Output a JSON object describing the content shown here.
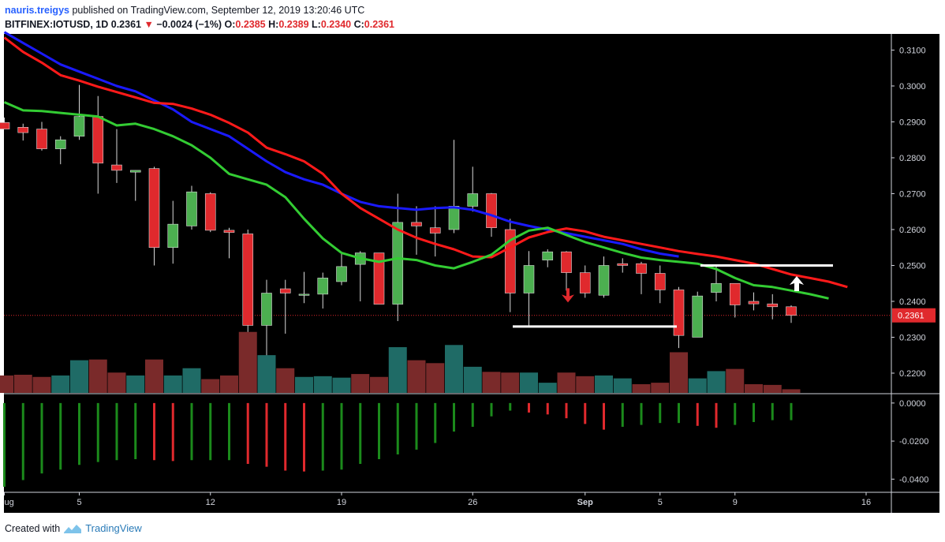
{
  "header": {
    "author": "nauris.treigys",
    "published_text": "published on TradingView.com, September 12, 2019 13:20:46 UTC",
    "symbol": "BITFINEX:IOTUSD, 1D",
    "last": "0.2361",
    "change_arrow": "▼",
    "change": "−0.0024 (−1%)",
    "o_label": "O:",
    "o": "0.2385",
    "h_label": "H:",
    "h": "0.2389",
    "l_label": "L:",
    "l": "0.2340",
    "c_label": "C:",
    "c": "0.2361"
  },
  "footer": {
    "created_with": "Created with",
    "brand": "TradingView",
    "logo_icon": "tradingview-logo-icon"
  },
  "colors": {
    "background": "#000000",
    "up": "#4caf50",
    "down": "#e0292d",
    "ema_blue": "#1a1aff",
    "ema_red": "#ff1a1a",
    "ema_green": "#33cc33",
    "vol_up": "#1f6b66",
    "vol_down": "#7a2a2a",
    "macd_up": "#1b8a1b",
    "macd_down": "#e0292d",
    "grid": "#2a2e39",
    "axis_text": "#d1d4dc"
  },
  "chart_data": [
    {
      "type": "candlestick",
      "title": "BITFINEX:IOTUSD, 1D",
      "ylim": [
        0.2145,
        0.3145
      ],
      "y_ticks": [
        "0.3100",
        "0.3000",
        "0.2900",
        "0.2800",
        "0.2700",
        "0.2600",
        "0.2500",
        "0.2400",
        "0.2300",
        "0.2200"
      ],
      "x_labels": [
        "ug",
        "5",
        "12",
        "19",
        "26",
        "Sep",
        "5",
        "9",
        "16"
      ],
      "last_price_label": "0.2361",
      "last_price": 0.2361,
      "candles": [
        {
          "o": 0.2898,
          "h": 0.2912,
          "l": 0.288,
          "c": 0.288
        },
        {
          "o": 0.2885,
          "h": 0.2895,
          "l": 0.2848,
          "c": 0.287
        },
        {
          "o": 0.288,
          "h": 0.29,
          "l": 0.282,
          "c": 0.2825
        },
        {
          "o": 0.2825,
          "h": 0.286,
          "l": 0.2782,
          "c": 0.285
        },
        {
          "o": 0.286,
          "h": 0.3003,
          "l": 0.285,
          "c": 0.2915
        },
        {
          "o": 0.2915,
          "h": 0.2972,
          "l": 0.27,
          "c": 0.2785
        },
        {
          "o": 0.278,
          "h": 0.288,
          "l": 0.273,
          "c": 0.2765
        },
        {
          "o": 0.276,
          "h": 0.2765,
          "l": 0.268,
          "c": 0.2765
        },
        {
          "o": 0.277,
          "h": 0.2775,
          "l": 0.25,
          "c": 0.255
        },
        {
          "o": 0.255,
          "h": 0.268,
          "l": 0.2505,
          "c": 0.2615
        },
        {
          "o": 0.261,
          "h": 0.2722,
          "l": 0.26,
          "c": 0.2705
        },
        {
          "o": 0.27,
          "h": 0.2704,
          "l": 0.2593,
          "c": 0.2598
        },
        {
          "o": 0.2598,
          "h": 0.2605,
          "l": 0.252,
          "c": 0.2592
        },
        {
          "o": 0.2588,
          "h": 0.26,
          "l": 0.2265,
          "c": 0.2333
        },
        {
          "o": 0.2333,
          "h": 0.246,
          "l": 0.22,
          "c": 0.2423
        },
        {
          "o": 0.2435,
          "h": 0.246,
          "l": 0.231,
          "c": 0.2423
        },
        {
          "o": 0.2418,
          "h": 0.2482,
          "l": 0.2395,
          "c": 0.242
        },
        {
          "o": 0.242,
          "h": 0.248,
          "l": 0.238,
          "c": 0.2465
        },
        {
          "o": 0.2455,
          "h": 0.2535,
          "l": 0.2445,
          "c": 0.2497
        },
        {
          "o": 0.2503,
          "h": 0.254,
          "l": 0.24,
          "c": 0.2535
        },
        {
          "o": 0.2535,
          "h": 0.2535,
          "l": 0.24,
          "c": 0.2392
        },
        {
          "o": 0.2392,
          "h": 0.27,
          "l": 0.2345,
          "c": 0.262
        },
        {
          "o": 0.262,
          "h": 0.2665,
          "l": 0.253,
          "c": 0.261
        },
        {
          "o": 0.2605,
          "h": 0.2665,
          "l": 0.2525,
          "c": 0.259
        },
        {
          "o": 0.26,
          "h": 0.285,
          "l": 0.259,
          "c": 0.2665
        },
        {
          "o": 0.2665,
          "h": 0.2775,
          "l": 0.265,
          "c": 0.27
        },
        {
          "o": 0.27,
          "h": 0.2702,
          "l": 0.258,
          "c": 0.2605
        },
        {
          "o": 0.26,
          "h": 0.263,
          "l": 0.237,
          "c": 0.2423
        },
        {
          "o": 0.2423,
          "h": 0.254,
          "l": 0.233,
          "c": 0.25
        },
        {
          "o": 0.2515,
          "h": 0.2545,
          "l": 0.2495,
          "c": 0.2538
        },
        {
          "o": 0.2538,
          "h": 0.254,
          "l": 0.243,
          "c": 0.248
        },
        {
          "o": 0.248,
          "h": 0.25,
          "l": 0.241,
          "c": 0.2423
        },
        {
          "o": 0.2417,
          "h": 0.2525,
          "l": 0.241,
          "c": 0.25
        },
        {
          "o": 0.2505,
          "h": 0.252,
          "l": 0.248,
          "c": 0.25
        },
        {
          "o": 0.2505,
          "h": 0.251,
          "l": 0.242,
          "c": 0.2478
        },
        {
          "o": 0.2478,
          "h": 0.25,
          "l": 0.2395,
          "c": 0.2432
        },
        {
          "o": 0.2432,
          "h": 0.244,
          "l": 0.227,
          "c": 0.2305
        },
        {
          "o": 0.23,
          "h": 0.2427,
          "l": 0.23,
          "c": 0.2415
        },
        {
          "o": 0.2425,
          "h": 0.25,
          "l": 0.24,
          "c": 0.245
        },
        {
          "o": 0.245,
          "h": 0.245,
          "l": 0.2355,
          "c": 0.239
        },
        {
          "o": 0.24,
          "h": 0.2425,
          "l": 0.2375,
          "c": 0.2393
        },
        {
          "o": 0.2393,
          "h": 0.242,
          "l": 0.235,
          "c": 0.2385
        },
        {
          "o": 0.2385,
          "h": 0.2389,
          "l": 0.234,
          "c": 0.2361
        }
      ],
      "ema_green": [
        0.2955,
        0.2932,
        0.293,
        0.2925,
        0.292,
        0.2915,
        0.289,
        0.2895,
        0.288,
        0.286,
        0.2835,
        0.28,
        0.2755,
        0.274,
        0.2725,
        0.269,
        0.263,
        0.2575,
        0.2535,
        0.252,
        0.251,
        0.252,
        0.2515,
        0.25,
        0.2492,
        0.251,
        0.253,
        0.257,
        0.2597,
        0.2605,
        0.2585,
        0.2565,
        0.255,
        0.2535,
        0.2522,
        0.2515,
        0.251,
        0.2505,
        0.249,
        0.2465,
        0.2445,
        0.244,
        0.243,
        0.242,
        0.2408
      ],
      "ema_red": [
        0.3135,
        0.3095,
        0.3065,
        0.303,
        0.3015,
        0.2998,
        0.2983,
        0.2968,
        0.2953,
        0.295,
        0.2937,
        0.292,
        0.2897,
        0.287,
        0.2828,
        0.281,
        0.279,
        0.2755,
        0.27,
        0.266,
        0.263,
        0.26,
        0.2577,
        0.256,
        0.2545,
        0.2525,
        0.2523,
        0.255,
        0.2578,
        0.2593,
        0.2603,
        0.2595,
        0.258,
        0.257,
        0.256,
        0.255,
        0.254,
        0.2532,
        0.2525,
        0.2515,
        0.2505,
        0.249,
        0.2475,
        0.2465,
        0.2455,
        0.244
      ],
      "ema_blue": [
        0.315,
        0.312,
        0.309,
        0.306,
        0.304,
        0.302,
        0.3,
        0.2985,
        0.296,
        0.2935,
        0.29,
        0.288,
        0.286,
        0.2825,
        0.279,
        0.276,
        0.274,
        0.2725,
        0.27,
        0.2677,
        0.2665,
        0.266,
        0.2655,
        0.266,
        0.2662,
        0.2655,
        0.264,
        0.2622,
        0.261,
        0.26,
        0.259,
        0.258,
        0.257,
        0.256,
        0.2545,
        0.2533,
        0.2525
      ],
      "support_line": {
        "value": 0.233,
        "label": ""
      },
      "resistance_line": {
        "value": 0.25,
        "label": ""
      },
      "arrows": [
        {
          "direction": "down",
          "color": "red",
          "value": 0.241
        },
        {
          "direction": "up",
          "color": "white",
          "value": 0.2455
        }
      ]
    },
    {
      "type": "bar",
      "title": "Volume",
      "values": [
        24,
        25,
        22,
        24,
        45,
        46,
        28,
        24,
        46,
        24,
        34,
        19,
        24,
        84,
        52,
        34,
        22,
        23,
        21,
        26,
        22,
        63,
        45,
        41,
        66,
        36,
        29,
        28,
        28,
        14,
        28,
        23,
        24,
        20,
        12,
        14,
        56,
        20,
        30,
        33,
        12,
        11,
        5
      ],
      "up": [
        false,
        false,
        false,
        true,
        true,
        false,
        false,
        true,
        false,
        true,
        true,
        false,
        false,
        false,
        true,
        false,
        true,
        true,
        true,
        false,
        false,
        true,
        false,
        false,
        true,
        true,
        false,
        false,
        true,
        true,
        false,
        false,
        true,
        true,
        false,
        false,
        false,
        true,
        true,
        false,
        false,
        false,
        false
      ]
    },
    {
      "type": "bar",
      "title": "MACD histogram",
      "ylim": [
        -0.0465,
        0.0045
      ],
      "y_ticks": [
        "0.0000",
        "-0.0200",
        "-0.0400"
      ],
      "values": [
        -0.044,
        -0.0405,
        -0.037,
        -0.035,
        -0.0325,
        -0.031,
        -0.03,
        -0.0295,
        -0.03,
        -0.0305,
        -0.03,
        -0.03,
        -0.03,
        -0.032,
        -0.0335,
        -0.0355,
        -0.036,
        -0.0355,
        -0.035,
        -0.032,
        -0.0295,
        -0.027,
        -0.0245,
        -0.021,
        -0.015,
        -0.0125,
        -0.007,
        -0.004,
        -0.005,
        -0.006,
        -0.008,
        -0.011,
        -0.014,
        -0.0125,
        -0.0115,
        -0.0105,
        -0.0105,
        -0.012,
        -0.013,
        -0.0115,
        -0.01,
        -0.009,
        -0.009
      ]
    }
  ]
}
